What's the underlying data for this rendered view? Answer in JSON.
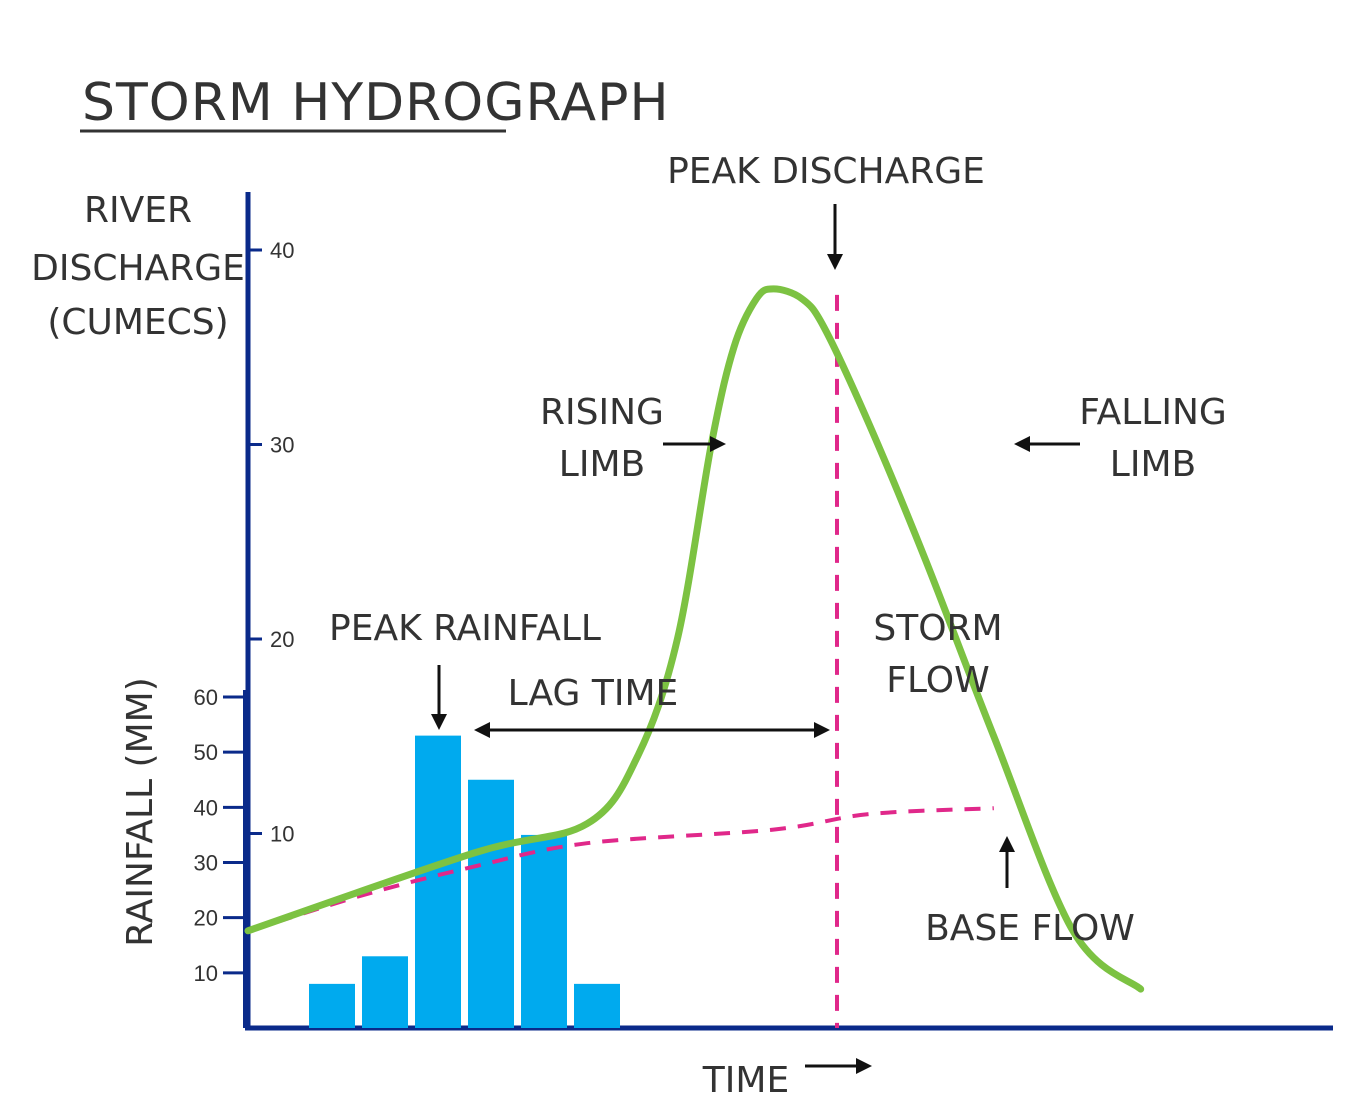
{
  "chart_data": {
    "type": "bar-line",
    "title": "STORM HYDROGRAPH",
    "discharge_axis": {
      "label_lines": [
        "RIVER",
        "DISCHARGE",
        "(CUMECS)"
      ],
      "ticks": [
        10,
        20,
        30,
        40
      ],
      "ylim": [
        0,
        43
      ]
    },
    "rainfall_axis": {
      "label": "RAINFALL (MM)",
      "ticks": [
        10,
        20,
        30,
        40,
        50,
        60
      ],
      "ylim": [
        0,
        60
      ]
    },
    "xlabel": "TIME",
    "rainfall_bars": {
      "name": "Rainfall (mm)",
      "values": [
        8,
        13,
        53,
        45,
        35,
        8
      ]
    },
    "discharge_curve": {
      "name": "River discharge (cumecs)",
      "x": [
        0,
        2.0,
        3.0,
        3.45,
        3.8,
        4.1,
        4.3,
        4.5,
        4.65,
        4.9,
        5.1,
        5.5,
        6.0,
        6.6,
        7.3,
        7.9
      ],
      "y": [
        5,
        9,
        10.5,
        14,
        20,
        30,
        35,
        37.5,
        38,
        37.5,
        36,
        31,
        24,
        15,
        5,
        2
      ]
    },
    "baseflow_curve": {
      "name": "Base flow (cumecs)",
      "x": [
        0,
        1.0,
        2.0,
        3.0,
        4.65,
        5.5,
        6.6
      ],
      "y": [
        5,
        6.8,
        8.3,
        9.5,
        10.2,
        11,
        11.3
      ]
    },
    "peak_time_x": 4.65,
    "annotations": {
      "peak_discharge": "PEAK DISCHARGE",
      "rising_limb": [
        "RISING",
        "LIMB"
      ],
      "falling_limb": [
        "FALLING",
        "LIMB"
      ],
      "peak_rainfall": "PEAK RAINFALL",
      "lag_time": "LAG TIME",
      "storm_flow": [
        "STORM",
        "FLOW"
      ],
      "base_flow": "BASE FLOW"
    },
    "colors": {
      "axis": "#0a2a8a",
      "bars": "#00aaee",
      "discharge": "#7cc242",
      "baseflow": "#e0288a",
      "arrow": "#111111",
      "text": "#333333"
    }
  }
}
